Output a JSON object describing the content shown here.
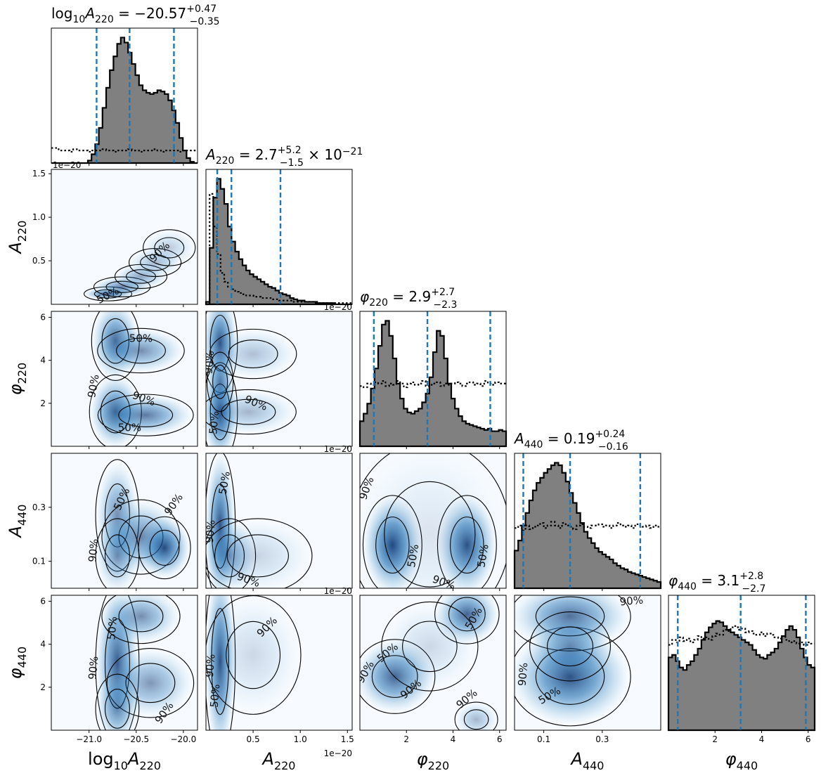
{
  "colors": {
    "hist_fill": "#808080",
    "hist_edge": "#000000",
    "quantile_line": "#1f77b4",
    "density_low": "#f7fbff",
    "density_high": "#08306b",
    "contour": "#000000"
  },
  "chart_data": {
    "type": "corner",
    "parameters": [
      {
        "key": "log10A220",
        "axis_label": "log10A220",
        "range": [
          -21.4,
          -19.85
        ],
        "ticks": [
          -21.0,
          -20.5,
          -20.0
        ],
        "tick_labels": [
          "−21.0",
          "−20.5",
          "−20.0"
        ],
        "title": "log10A220 = −20.57 +0.47 −0.35",
        "title_parts": {
          "name": "log",
          "sub1": "10",
          "sym": "A",
          "sub2": "220",
          "eq": " = −20.57",
          "plus": "+0.47",
          "minus": "−0.35",
          "suffix": ""
        },
        "quantiles": [
          -20.92,
          -20.57,
          -20.1
        ]
      },
      {
        "key": "A220",
        "axis_label": "A220",
        "range": [
          0.0,
          1.55
        ],
        "ticks": [
          0.5,
          1.0,
          1.5
        ],
        "tick_labels": [
          "0.5",
          "1.0",
          "1.5"
        ],
        "offset": "1e−20",
        "title": "A220 = 2.7 +5.2 −1.5 × 10^−21",
        "title_parts": {
          "name": "",
          "sub1": "",
          "sym": "A",
          "sub2": "220",
          "eq": " = 2.7",
          "plus": "+5.2",
          "minus": "−1.5",
          "suffix": " × 10",
          "sup": "−21"
        },
        "quantiles": [
          0.12,
          0.27,
          0.79
        ]
      },
      {
        "key": "phi220",
        "axis_label": "φ220",
        "range": [
          0.0,
          6.28
        ],
        "ticks": [
          2,
          4,
          6
        ],
        "tick_labels": [
          "2",
          "4",
          "6"
        ],
        "title": "φ220 = 2.9 +2.7 −2.3",
        "title_parts": {
          "name": "",
          "sub1": "",
          "sym": "φ",
          "sub2": "220",
          "eq": " = 2.9",
          "plus": "+2.7",
          "minus": "−2.3",
          "suffix": ""
        },
        "quantiles": [
          0.6,
          2.9,
          5.6
        ]
      },
      {
        "key": "A440",
        "axis_label": "A440",
        "range": [
          0.0,
          0.5
        ],
        "ticks": [
          0.1,
          0.3
        ],
        "tick_labels": [
          "0.1",
          "0.3"
        ],
        "title": "A440 = 0.19 +0.24 −0.16",
        "title_parts": {
          "name": "",
          "sub1": "",
          "sym": "A",
          "sub2": "440",
          "eq": " = 0.19",
          "plus": "+0.24",
          "minus": "−0.16",
          "suffix": ""
        },
        "quantiles": [
          0.03,
          0.19,
          0.43
        ]
      },
      {
        "key": "phi440",
        "axis_label": "φ440",
        "range": [
          0.0,
          6.28
        ],
        "ticks": [
          2,
          4,
          6
        ],
        "tick_labels": [
          "2",
          "4",
          "6"
        ],
        "title": "φ440 = 3.1 +2.8 −2.7",
        "title_parts": {
          "name": "",
          "sub1": "",
          "sym": "φ",
          "sub2": "440",
          "eq": " = 3.1",
          "plus": "+2.8",
          "minus": "−2.7",
          "suffix": ""
        },
        "quantiles": [
          0.4,
          3.1,
          5.9
        ]
      }
    ],
    "histograms": [
      {
        "posterior": [
          0,
          0,
          0,
          0,
          0,
          0,
          0,
          0,
          0,
          0,
          0.02,
          0.07,
          0.15,
          0.28,
          0.44,
          0.6,
          0.74,
          0.85,
          0.95,
          1.0,
          0.96,
          0.88,
          0.79,
          0.7,
          0.62,
          0.58,
          0.56,
          0.55,
          0.56,
          0.58,
          0.57,
          0.55,
          0.5,
          0.42,
          0.32,
          0.2,
          0.1,
          0.04,
          0.01,
          0
        ],
        "prior": [
          0.12,
          0.12,
          0.1,
          0.1,
          0.1,
          0.09,
          0.11,
          0.1,
          0.1,
          0.1,
          0.09,
          0.1,
          0.1,
          0.1,
          0.11,
          0.1,
          0.1,
          0.09,
          0.1,
          0.1,
          0.1,
          0.11,
          0.1,
          0.1,
          0.09,
          0.1,
          0.1,
          0.1,
          0.11,
          0.1,
          0.09,
          0.1,
          0.1,
          0.1,
          0.1,
          0.09,
          0.1,
          0.1,
          0.1,
          0.1
        ]
      },
      {
        "posterior": [
          0.02,
          0.45,
          0.85,
          1.0,
          0.92,
          0.8,
          0.62,
          0.5,
          0.42,
          0.36,
          0.31,
          0.27,
          0.24,
          0.22,
          0.2,
          0.18,
          0.16,
          0.14,
          0.13,
          0.11,
          0.09,
          0.08,
          0.07,
          0.05,
          0.04,
          0.03,
          0.03,
          0.02,
          0.02,
          0.02,
          0.01,
          0.01,
          0.01,
          0.01,
          0.01,
          0.0,
          0.0,
          0.0,
          0.0,
          0.0
        ],
        "prior": [
          0,
          0.88,
          0.62,
          0.4,
          0.25,
          0.18,
          0.14,
          0.12,
          0.1,
          0.09,
          0.08,
          0.07,
          0.07,
          0.06,
          0.06,
          0.05,
          0.05,
          0.05,
          0.04,
          0.04,
          0.03,
          0.03,
          0.03,
          0.03,
          0.02,
          0.02,
          0.02,
          0.02,
          0.02,
          0.02,
          0.02,
          0.01,
          0.01,
          0.01,
          0.01,
          0.01,
          0.01,
          0.01,
          0.01,
          0.01
        ]
      },
      {
        "posterior": [
          0.2,
          0.26,
          0.34,
          0.46,
          0.62,
          0.8,
          0.97,
          1.0,
          0.88,
          0.7,
          0.5,
          0.38,
          0.3,
          0.27,
          0.26,
          0.28,
          0.3,
          0.35,
          0.42,
          0.55,
          0.75,
          0.92,
          0.88,
          0.7,
          0.5,
          0.38,
          0.3,
          0.24,
          0.2,
          0.18,
          0.17,
          0.16,
          0.15,
          0.14,
          0.13,
          0.14,
          0.12,
          0.12,
          0.13,
          0.12
        ],
        "prior": [
          0.48,
          0.47,
          0.5,
          0.49,
          0.51,
          0.5,
          0.52,
          0.48,
          0.5,
          0.49,
          0.52,
          0.5,
          0.47,
          0.5,
          0.51,
          0.49,
          0.5,
          0.52,
          0.48,
          0.49,
          0.5,
          0.51,
          0.48,
          0.5,
          0.49,
          0.5,
          0.51,
          0.5,
          0.48,
          0.5,
          0.51,
          0.49,
          0.5,
          0.48,
          0.52,
          0.5,
          0.49,
          0.51,
          0.5,
          0.5
        ]
      },
      {
        "posterior": [
          0.3,
          0.38,
          0.5,
          0.6,
          0.7,
          0.78,
          0.84,
          0.88,
          0.92,
          0.95,
          0.98,
          1.0,
          0.98,
          0.92,
          0.85,
          0.76,
          0.68,
          0.6,
          0.52,
          0.45,
          0.4,
          0.36,
          0.32,
          0.29,
          0.27,
          0.25,
          0.23,
          0.2,
          0.18,
          0.16,
          0.15,
          0.13,
          0.12,
          0.11,
          0.1,
          0.09,
          0.08,
          0.07,
          0.06,
          0.05
        ],
        "prior": [
          0.48,
          0.5,
          0.46,
          0.5,
          0.47,
          0.49,
          0.5,
          0.52,
          0.48,
          0.5,
          0.53,
          0.5,
          0.48,
          0.52,
          0.5,
          0.49,
          0.47,
          0.5,
          0.51,
          0.49,
          0.48,
          0.5,
          0.5,
          0.51,
          0.49,
          0.5,
          0.48,
          0.5,
          0.52,
          0.5,
          0.49,
          0.5,
          0.48,
          0.51,
          0.5,
          0.49,
          0.5,
          0.48,
          0.5,
          0.49
        ]
      },
      {
        "posterior": [
          0.58,
          0.6,
          0.55,
          0.5,
          0.48,
          0.52,
          0.55,
          0.6,
          0.65,
          0.72,
          0.78,
          0.82,
          0.85,
          0.87,
          0.86,
          0.83,
          0.8,
          0.78,
          0.76,
          0.74,
          0.72,
          0.7,
          0.68,
          0.64,
          0.6,
          0.58,
          0.57,
          0.6,
          0.62,
          0.65,
          0.7,
          0.75,
          0.8,
          0.83,
          0.8,
          0.74,
          0.65,
          0.58,
          0.52,
          0.5
        ],
        "prior": [
          0.68,
          0.72,
          0.7,
          0.74,
          0.71,
          0.73,
          0.7,
          0.72,
          0.75,
          0.73,
          0.74,
          0.72,
          0.75,
          0.77,
          0.76,
          0.8,
          0.79,
          0.82,
          0.83,
          0.8,
          0.81,
          0.78,
          0.79,
          0.77,
          0.76,
          0.78,
          0.75,
          0.77,
          0.76,
          0.74,
          0.73,
          0.75,
          0.72,
          0.7,
          0.71,
          0.69,
          0.7,
          0.68,
          0.7,
          0.69
        ]
      }
    ],
    "densities": {
      "1-0": {
        "blobs": [
          [
            -20.8,
            0.12,
            0.11,
            0.03,
            0.8
          ],
          [
            -20.65,
            0.2,
            0.13,
            0.05,
            0.6
          ],
          [
            -20.45,
            0.32,
            0.12,
            0.06,
            0.45
          ],
          [
            -20.3,
            0.48,
            0.12,
            0.07,
            0.35
          ],
          [
            -20.15,
            0.65,
            0.12,
            0.09,
            0.25
          ]
        ]
      },
      "2-0": {
        "blobs": [
          [
            -20.72,
            4.9,
            0.11,
            0.8,
            0.75
          ],
          [
            -20.45,
            4.45,
            0.2,
            0.45,
            0.55
          ],
          [
            -20.72,
            1.6,
            0.12,
            0.75,
            0.8
          ],
          [
            -20.4,
            1.45,
            0.22,
            0.42,
            0.65
          ]
        ]
      },
      "2-1": {
        "blobs": [
          [
            0.15,
            4.8,
            0.08,
            1.0,
            0.85
          ],
          [
            0.15,
            1.6,
            0.08,
            1.0,
            0.9
          ],
          [
            0.5,
            4.3,
            0.2,
            0.5,
            0.3
          ],
          [
            0.45,
            1.6,
            0.22,
            0.45,
            0.35
          ],
          [
            0.15,
            3.0,
            0.06,
            0.6,
            0.5
          ]
        ]
      },
      "3-0": {
        "blobs": [
          [
            -20.7,
            0.27,
            0.1,
            0.09,
            0.55
          ],
          [
            -20.45,
            0.19,
            0.18,
            0.06,
            0.6
          ],
          [
            -20.2,
            0.15,
            0.12,
            0.05,
            0.85
          ],
          [
            -20.7,
            0.12,
            0.1,
            0.06,
            0.5
          ]
        ]
      },
      "3-1": {
        "blobs": [
          [
            0.15,
            0.23,
            0.07,
            0.12,
            0.85
          ],
          [
            0.25,
            0.12,
            0.12,
            0.06,
            0.5
          ],
          [
            0.55,
            0.12,
            0.25,
            0.06,
            0.2
          ]
        ]
      },
      "3-2": {
        "blobs": [
          [
            1.4,
            0.16,
            0.55,
            0.08,
            0.9
          ],
          [
            4.6,
            0.16,
            0.55,
            0.08,
            0.85
          ],
          [
            3.0,
            0.2,
            1.5,
            0.15,
            0.12
          ]
        ]
      },
      "4-0": {
        "blobs": [
          [
            -20.7,
            3.1,
            0.1,
            1.6,
            0.8
          ],
          [
            -20.45,
            5.3,
            0.18,
            0.55,
            0.55
          ],
          [
            -20.35,
            2.2,
            0.2,
            0.7,
            0.5
          ],
          [
            -20.7,
            1.0,
            0.1,
            0.7,
            0.45
          ]
        ]
      },
      "4-1": {
        "blobs": [
          [
            0.15,
            3.2,
            0.07,
            1.9,
            0.85
          ],
          [
            0.5,
            3.5,
            0.22,
            1.2,
            0.18
          ]
        ]
      },
      "4-2": {
        "blobs": [
          [
            1.5,
            2.5,
            0.75,
            0.75,
            0.75
          ],
          [
            4.6,
            5.4,
            0.6,
            0.6,
            0.75
          ],
          [
            3.0,
            3.9,
            0.9,
            0.9,
            0.18
          ],
          [
            5.0,
            0.5,
            0.4,
            0.35,
            0.35
          ]
        ]
      },
      "4-3": {
        "blobs": [
          [
            0.19,
            2.5,
            0.09,
            1.0,
            0.85
          ],
          [
            0.19,
            5.3,
            0.09,
            0.7,
            0.7
          ],
          [
            0.19,
            3.9,
            0.06,
            0.7,
            0.45
          ]
        ]
      }
    },
    "contour_labels": [
      {
        "pos": "1-0",
        "text": "50%",
        "x": -20.8,
        "y": 0.1,
        "rot": -28
      },
      {
        "pos": "1-0",
        "text": "90%",
        "x": -20.25,
        "y": 0.6,
        "rot": -45
      },
      {
        "pos": "2-0",
        "text": "50%",
        "x": -20.45,
        "y": 5.0,
        "rot": 0
      },
      {
        "pos": "2-0",
        "text": "90%",
        "x": -20.95,
        "y": 2.8,
        "rot": -80
      },
      {
        "pos": "2-0",
        "text": "90%",
        "x": -20.42,
        "y": 2.2,
        "rot": 20
      },
      {
        "pos": "2-0",
        "text": "50%",
        "x": -20.57,
        "y": 0.85,
        "rot": 0
      },
      {
        "pos": "2-1",
        "text": "90%",
        "x": 0.04,
        "y": 3.9,
        "rot": -85
      },
      {
        "pos": "2-1",
        "text": "90%",
        "x": 0.53,
        "y": 2.0,
        "rot": 22
      },
      {
        "pos": "2-1",
        "text": "50%",
        "x": 0.09,
        "y": 1.1,
        "rot": -85
      },
      {
        "pos": "3-0",
        "text": "50%",
        "x": -20.65,
        "y": 0.33,
        "rot": -65
      },
      {
        "pos": "3-0",
        "text": "90%",
        "x": -20.1,
        "y": 0.31,
        "rot": -55
      },
      {
        "pos": "3-0",
        "text": "90%",
        "x": -20.95,
        "y": 0.14,
        "rot": -85
      },
      {
        "pos": "3-1",
        "text": "50%",
        "x": 0.2,
        "y": 0.39,
        "rot": -80
      },
      {
        "pos": "3-1",
        "text": "90%",
        "x": 0.05,
        "y": 0.21,
        "rot": -85
      },
      {
        "pos": "3-1",
        "text": "90%",
        "x": 0.45,
        "y": 0.03,
        "rot": 20
      },
      {
        "pos": "3-2",
        "text": "90%",
        "x": 0.3,
        "y": 0.37,
        "rot": -70
      },
      {
        "pos": "3-2",
        "text": "50%",
        "x": 2.3,
        "y": 0.12,
        "rot": -80
      },
      {
        "pos": "3-2",
        "text": "90%",
        "x": 3.6,
        "y": 0.02,
        "rot": 20
      },
      {
        "pos": "3-2",
        "text": "50%",
        "x": 5.3,
        "y": 0.12,
        "rot": -80
      },
      {
        "pos": "4-0",
        "text": "50%",
        "x": -20.75,
        "y": 4.75,
        "rot": -85
      },
      {
        "pos": "4-0",
        "text": "90%",
        "x": -20.95,
        "y": 2.9,
        "rot": -85
      },
      {
        "pos": "4-0",
        "text": "90%",
        "x": -20.2,
        "y": 0.8,
        "rot": -55
      },
      {
        "pos": "4-1",
        "text": "90%",
        "x": 0.65,
        "y": 4.8,
        "rot": -45
      },
      {
        "pos": "4-1",
        "text": "90%",
        "x": 0.05,
        "y": 3.0,
        "rot": -85
      },
      {
        "pos": "4-1",
        "text": "50%",
        "x": 0.1,
        "y": 1.6,
        "rot": -85
      },
      {
        "pos": "4-2",
        "text": "90%",
        "x": 0.25,
        "y": 2.7,
        "rot": -60
      },
      {
        "pos": "4-2",
        "text": "50%",
        "x": 1.2,
        "y": 3.6,
        "rot": -40
      },
      {
        "pos": "4-2",
        "text": "90%",
        "x": 2.2,
        "y": 1.9,
        "rot": -40
      },
      {
        "pos": "4-2",
        "text": "90%",
        "x": 4.6,
        "y": 1.45,
        "rot": -40
      },
      {
        "pos": "4-2",
        "text": "50%",
        "x": 4.9,
        "y": 5.2,
        "rot": -60
      },
      {
        "pos": "4-3",
        "text": "90%",
        "x": 0.03,
        "y": 2.6,
        "rot": -85
      },
      {
        "pos": "4-3",
        "text": "50%",
        "x": 0.12,
        "y": 1.6,
        "rot": -30
      },
      {
        "pos": "4-3",
        "text": "90%",
        "x": 0.4,
        "y": 6.0,
        "rot": -5
      }
    ],
    "grid": false,
    "legend": "none"
  }
}
